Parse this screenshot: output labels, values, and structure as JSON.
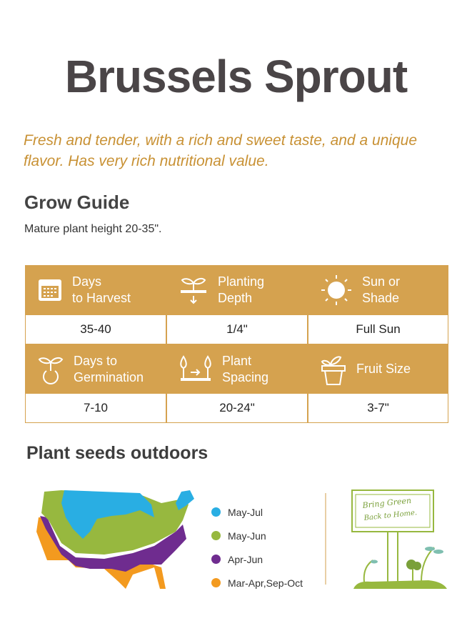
{
  "title": "Brussels Sprout",
  "tagline": "Fresh and tender, with a rich and sweet taste, and a unique flavor. Has very rich nutritional value.",
  "grow_guide": {
    "heading": "Grow Guide",
    "note": "Mature plant height 20-35\"."
  },
  "accent_color": "#d5a24f",
  "table": [
    {
      "icon": "calendar-icon",
      "label1": "Days",
      "label2": "to Harvest",
      "value": "35-40"
    },
    {
      "icon": "sprout-depth-icon",
      "label1": "Planting",
      "label2": "Depth",
      "value": "1/4\""
    },
    {
      "icon": "sun-icon",
      "label1": "Sun or",
      "label2": "Shade",
      "value": "Full Sun"
    },
    {
      "icon": "seed-sprout-icon",
      "label1": "Days to",
      "label2": "Germination",
      "value": "7-10"
    },
    {
      "icon": "plant-spacing-icon",
      "label1": "Plant",
      "label2": "Spacing",
      "value": "20-24\""
    },
    {
      "icon": "flower-pot-icon",
      "label1": "Fruit Size",
      "label2": "",
      "value": "3-7\""
    }
  ],
  "outdoors": {
    "heading": "Plant seeds outdoors",
    "legend": [
      {
        "label": "May-Jul",
        "color": "#29aee3"
      },
      {
        "label": "May-Jun",
        "color": "#97b83f"
      },
      {
        "label": "Apr-Jun",
        "color": "#6f2c8f"
      },
      {
        "label": "Mar-Apr,Sep-Oct",
        "color": "#f39a1f"
      }
    ]
  },
  "sign": {
    "line1": "Bring Green",
    "line2": "Back to Home."
  }
}
